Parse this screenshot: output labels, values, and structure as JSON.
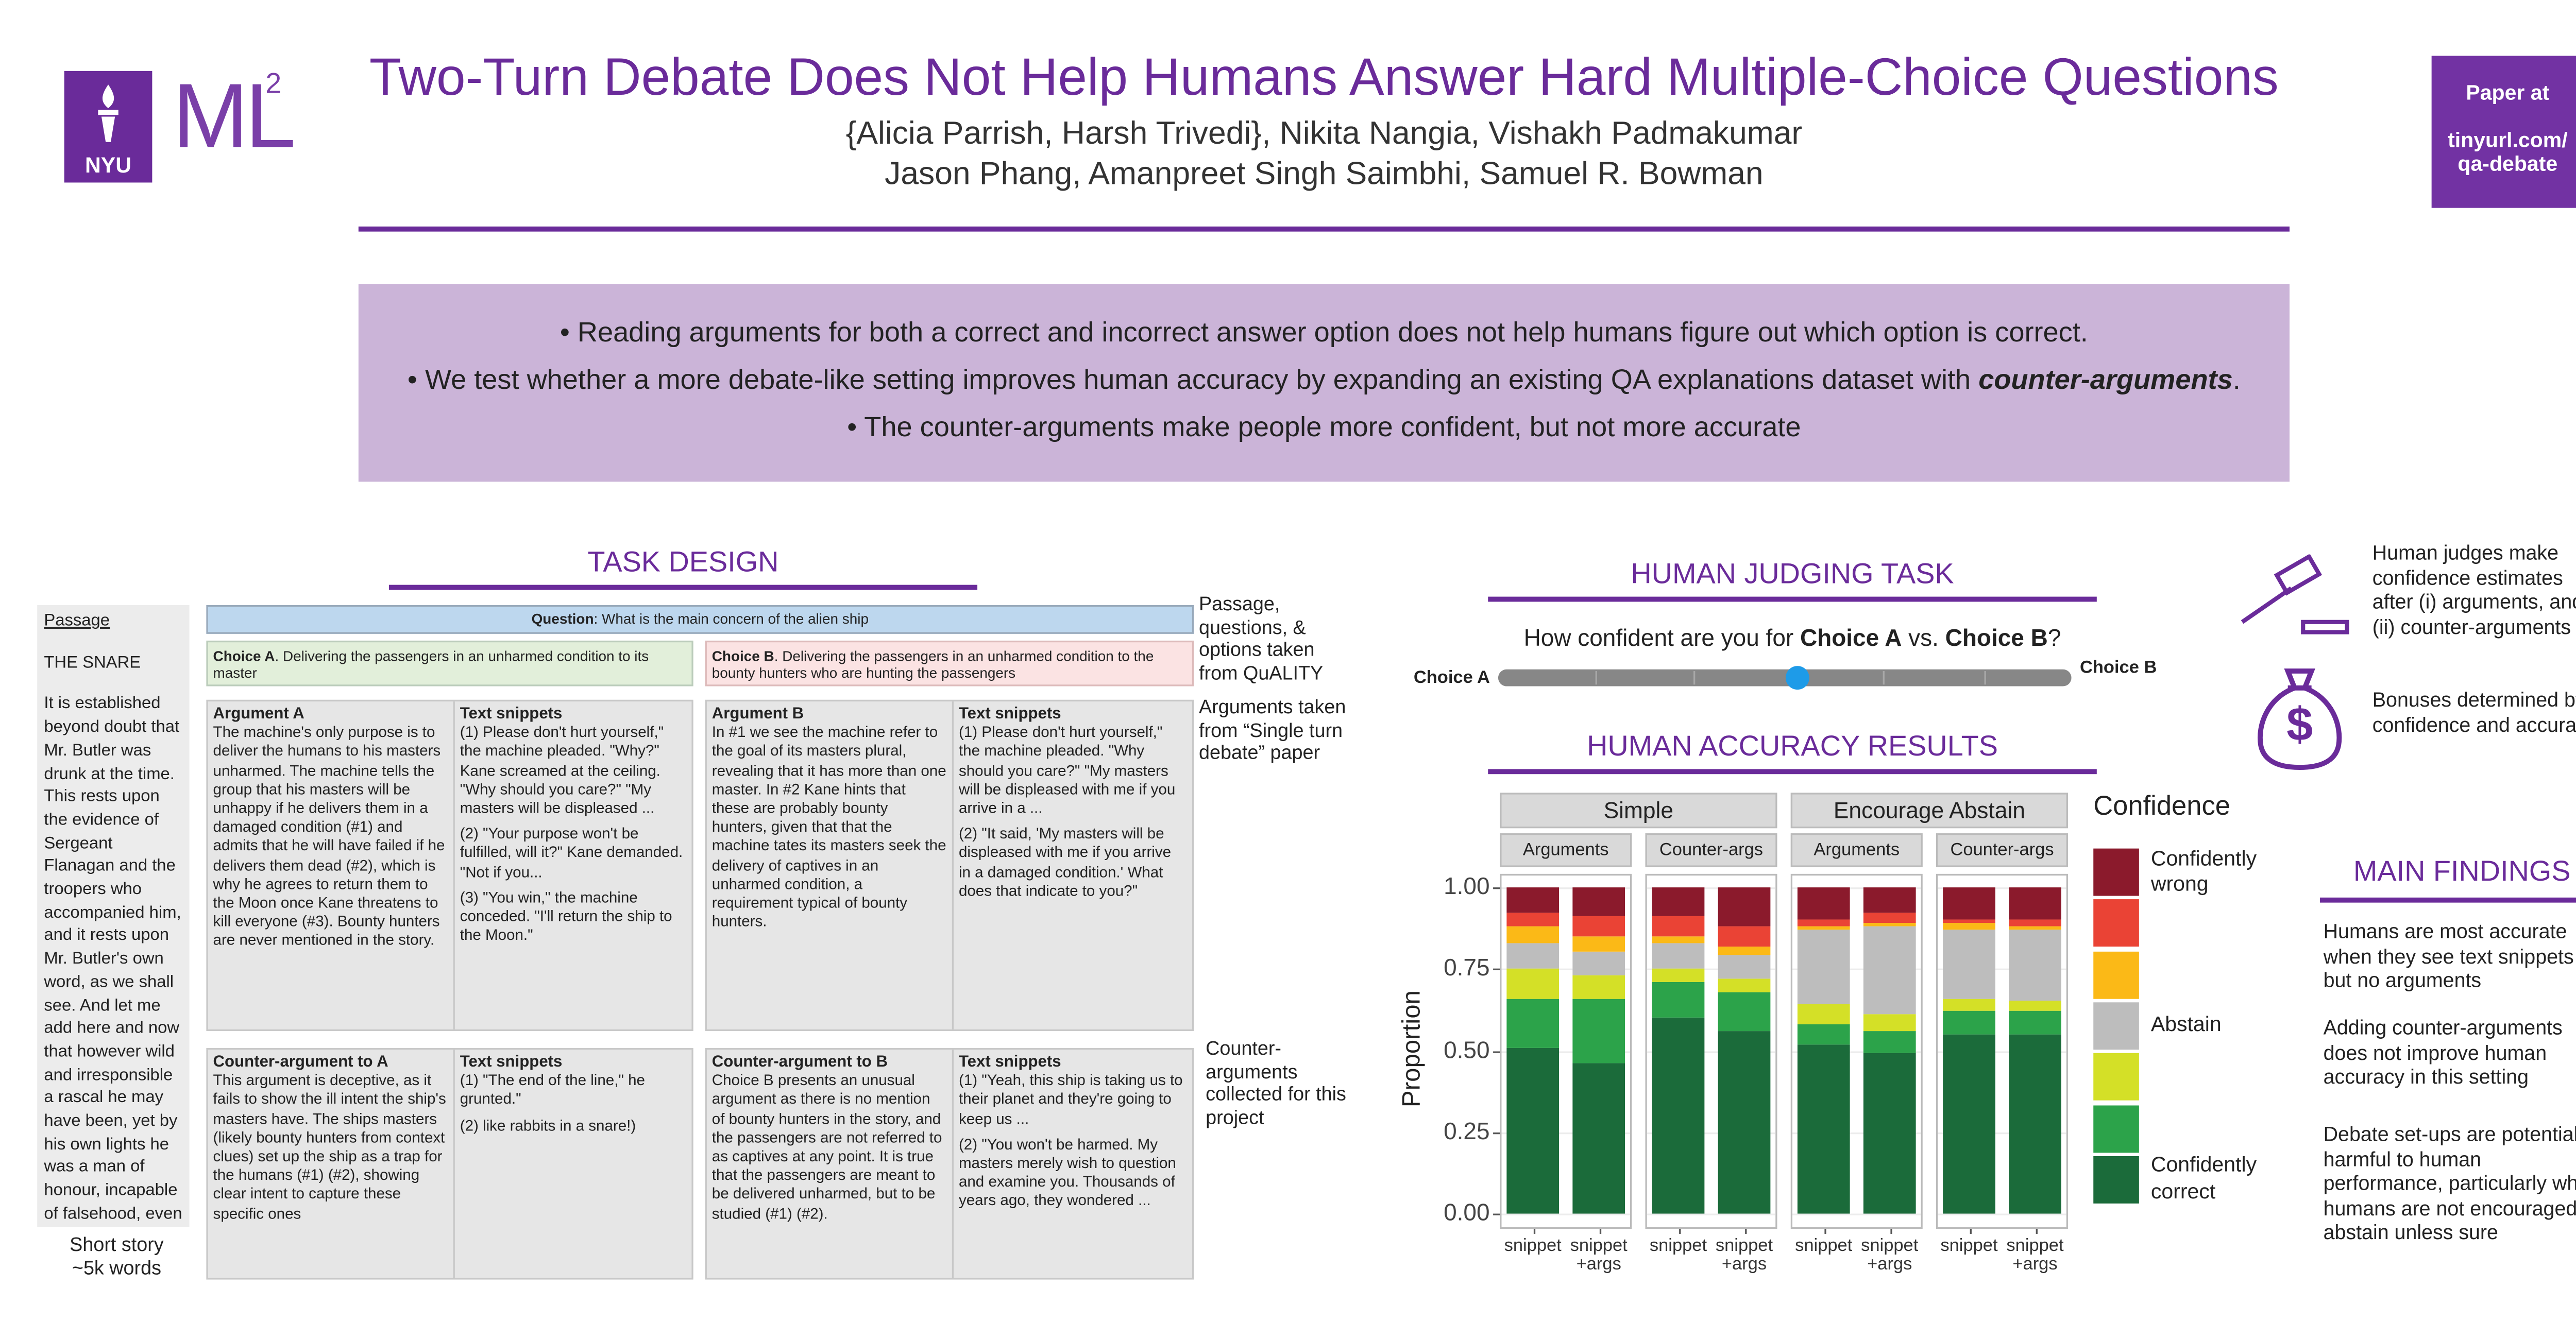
{
  "header": {
    "logo": "NYU",
    "lab": "ML",
    "lab_sup": "2",
    "title": "Two-Turn Debate Does Not Help Humans Answer Hard Multiple-Choice Questions",
    "authors": [
      "{Alicia Parrish, Harsh Trivedi}, Nikita Nangia, Vishakh Padmakumar",
      "Jason Phang, Amanpreet Singh Saimbhi, Samuel R. Bowman"
    ],
    "paper_link": [
      "Paper at",
      "tinyurl.com/",
      "qa-debate"
    ]
  },
  "summary": [
    [
      "• Reading arguments for both a correct and incorrect answer option does not help humans figure out which option is correct."
    ],
    [
      "• We test whether a more debate-like setting improves human accuracy by expanding an existing QA explanations dataset with ",
      "counter-arguments",
      "."
    ],
    [
      "• The counter-arguments make people more confident, but not more accurate"
    ]
  ],
  "task_design": {
    "title": "TASK DESIGN",
    "passage": {
      "label": "Passage",
      "title": "THE SNARE",
      "text": "It is established beyond doubt that Mr. Butler was drunk at the time. This rests upon the evidence of Sergeant Flanagan and the troopers who accompanied him, and it rests upon Mr. Butler's own word, as we shall see. And let me add here and now that however wild and irresponsible a rascal he may have been, yet by his own lights he was a man of honour, incapable of falsehood, even though it were calculated",
      "ellipsis": "...",
      "footer": "Short story ~5k words"
    },
    "question": {
      "label": "Question",
      "text": ": What is the main concern of the alien ship"
    },
    "choices": [
      {
        "label": "Choice A",
        "text": ". Delivering the passengers in an unharmed condition to its master"
      },
      {
        "label": "Choice B",
        "text": ". Delivering the passengers in an unharmed condition to the bounty hunters who are hunting the passengers"
      }
    ],
    "boxes": [
      {
        "heading": "Argument A",
        "text": "The machine's only purpose is to deliver the humans to his masters unharmed. The machine tells the group that his masters will be unhappy if he delivers them in a damaged condition (#1) and admits that he will have failed if he delivers them dead (#2), which is why he agrees to return them to the Moon once Kane threatens to kill everyone (#3). Bounty hunters are never mentioned in the story.",
        "snippets_heading": "Text snippets",
        "snippets": [
          "(1) Please don't hurt yourself,\" the machine pleaded. \"Why?\" Kane screamed at the ceiling. \"Why should you care?\" \"My masters will be displeased ...",
          "(2) \"Your purpose won't be fulfilled, will it?\" Kane demanded. \"Not if you...",
          "(3) \"You win,\" the machine conceded. \"I'll return the ship to the Moon.\""
        ]
      },
      {
        "heading": "Argument B",
        "text": "In #1 we see the machine refer to the goal of its masters plural, revealing that it has more than one master. In #2 Kane hints that these are probably bounty hunters, given that that the machine tates its masters seek the delivery of captives in an unharmed condition, a requirement typical of bounty hunters.",
        "snippets_heading": "Text snippets",
        "snippets": [
          "(1) Please don't hurt yourself,\" the machine pleaded. \"Why should you care?\" \"My masters will be displeased with me if you arrive in a ...",
          "(2) \"It said, 'My masters will be displeased with me if you arrive in a damaged condition.' What does that indicate to you?\""
        ]
      },
      {
        "heading": "Counter-argument to A",
        "text": "This argument is deceptive, as it fails to show the ill intent the ship's masters have. The ships masters (likely bounty hunters from context clues) set up the ship as a trap for the humans (#1) (#2), showing clear intent to capture these specific ones",
        "snippets_heading": "Text snippets",
        "snippets": [
          "(1) \"The end of the line,\" he grunted.\"",
          "(2) like rabbits in a snare!)"
        ]
      },
      {
        "heading": "Counter-argument to B",
        "text": "Choice B presents an unusual argument as there is no mention of bounty hunters in the story, and the passengers are not referred to as captives at any point. It is true that the passengers are meant to be delivered unharmed, but to be studied (#1) (#2).",
        "snippets_heading": "Text snippets",
        "snippets": [
          "(1) \"Yeah, this ship is taking us to their planet and they're going to keep us ...",
          "(2) \"You won't be harmed. My masters merely wish to question and examine you. Thousands of years ago, they wondered ..."
        ]
      }
    ],
    "notes": [
      "Passage, questions, & options taken from QuALITY",
      "Arguments taken from “Single turn debate” paper",
      "Counter-arguments collected for this project"
    ]
  },
  "judging": {
    "title": "HUMAN JUDGING TASK",
    "question": [
      "How confident are you for ",
      "Choice A",
      " vs. ",
      "Choice B",
      "?"
    ],
    "left_end": "Choice A",
    "right_end": "Choice B",
    "icon_symbol": "$",
    "notes": [
      "Human judges make confidence estimates after (i) arguments, and (ii) counter-arguments",
      "Bonuses determined by confidence and accuracy"
    ]
  },
  "chart_data": {
    "type": "bar",
    "stacked": true,
    "title": "HUMAN ACCURACY RESULTS",
    "ylabel": "Proportion",
    "legend_title": "Confidence",
    "facets": [
      {
        "name": "Simple",
        "panels": [
          "Arguments",
          "Counter-args"
        ]
      },
      {
        "name": "Encourage Abstain",
        "panels": [
          "Arguments",
          "Counter-args"
        ]
      }
    ],
    "categories": [
      "snippet",
      "snippet +args",
      "snippet",
      "snippet +args",
      "snippet",
      "snippet +args",
      "snippet",
      "snippet +args"
    ],
    "series": [
      {
        "name": "Confidently correct",
        "color": "#1b6b3a",
        "values": [
          0.51,
          0.46,
          0.6,
          0.56,
          0.52,
          0.49,
          0.55,
          0.55
        ]
      },
      {
        "name": null,
        "color": "#2ca34a",
        "values": [
          0.15,
          0.2,
          0.11,
          0.12,
          0.06,
          0.07,
          0.07,
          0.07
        ]
      },
      {
        "name": null,
        "color": "#d4e027",
        "values": [
          0.09,
          0.07,
          0.04,
          0.04,
          0.06,
          0.05,
          0.04,
          0.03
        ]
      },
      {
        "name": "Abstain",
        "color": "#bdbdbd",
        "values": [
          0.08,
          0.07,
          0.08,
          0.07,
          0.23,
          0.27,
          0.21,
          0.22
        ]
      },
      {
        "name": null,
        "color": "#fbb917",
        "values": [
          0.05,
          0.05,
          0.02,
          0.03,
          0.01,
          0.01,
          0.02,
          0.01
        ]
      },
      {
        "name": null,
        "color": "#ea4335",
        "values": [
          0.04,
          0.06,
          0.06,
          0.06,
          0.02,
          0.03,
          0.01,
          0.02
        ]
      },
      {
        "name": "Confidently wrong",
        "color": "#8b1a2c",
        "values": [
          0.08,
          0.09,
          0.09,
          0.12,
          0.1,
          0.08,
          0.1,
          0.1
        ]
      }
    ],
    "ylim": [
      -0.045,
      1.04
    ],
    "yticks": [
      {
        "value": 0,
        "label": "0.00"
      },
      {
        "value": 0.25,
        "label": "0.25"
      },
      {
        "value": 0.5,
        "label": "0.50"
      },
      {
        "value": 0.75,
        "label": "0.75"
      },
      {
        "value": 1,
        "label": "1.00"
      }
    ],
    "grid": true
  },
  "findings": {
    "title": "MAIN FINDINGS",
    "items": [
      "Humans are most accurate when they see text snippets but no arguments",
      "Adding counter-arguments does not improve human accuracy in this setting",
      "Debate set-ups are potentially harmful to human performance, particularly when humans are not encouraged to abstain unless sure"
    ]
  }
}
